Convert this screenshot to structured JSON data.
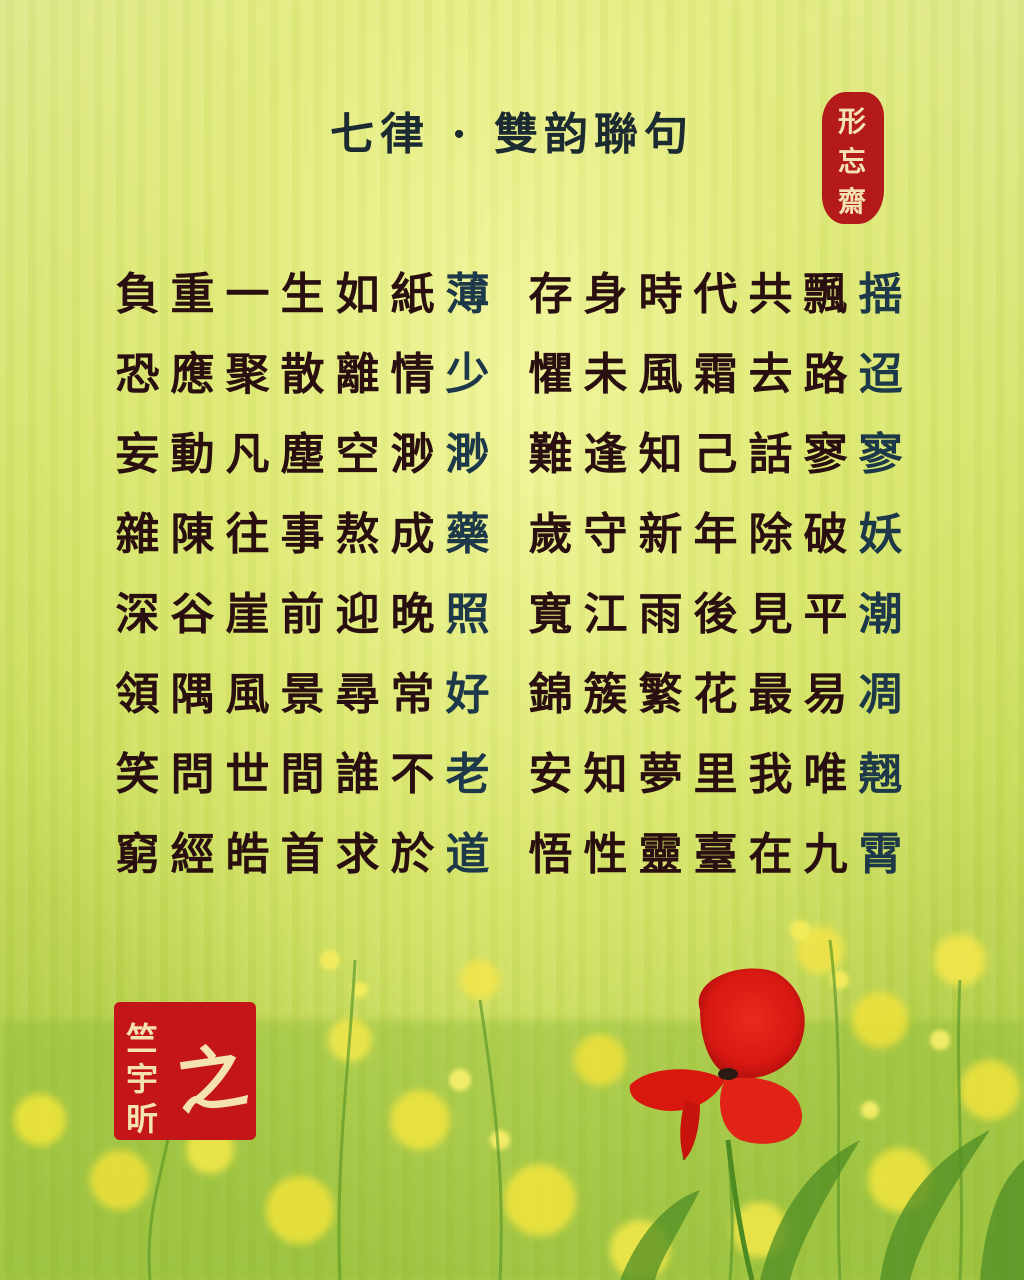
{
  "title": "七律 · 雙韵聯句",
  "poem": {
    "rows": [
      {
        "left": [
          "負",
          "重",
          "一",
          "生",
          "如",
          "紙",
          "薄"
        ],
        "right": [
          "存",
          "身",
          "時",
          "代",
          "共",
          "飄",
          "揺"
        ]
      },
      {
        "left": [
          "恐",
          "應",
          "聚",
          "散",
          "離",
          "情",
          "少"
        ],
        "right": [
          "懼",
          "未",
          "風",
          "霜",
          "去",
          "路",
          "迢"
        ]
      },
      {
        "left": [
          "妄",
          "動",
          "凡",
          "塵",
          "空",
          "渺",
          "渺"
        ],
        "right": [
          "難",
          "逢",
          "知",
          "己",
          "話",
          "寥",
          "寥"
        ]
      },
      {
        "left": [
          "雜",
          "陳",
          "往",
          "事",
          "熬",
          "成",
          "藥"
        ],
        "right": [
          "歲",
          "守",
          "新",
          "年",
          "除",
          "破",
          "妖"
        ]
      },
      {
        "left": [
          "深",
          "谷",
          "崖",
          "前",
          "迎",
          "晚",
          "照"
        ],
        "right": [
          "寬",
          "江",
          "雨",
          "後",
          "見",
          "平",
          "潮"
        ]
      },
      {
        "left": [
          "領",
          "隅",
          "風",
          "景",
          "尋",
          "常",
          "好"
        ],
        "right": [
          "錦",
          "簇",
          "繁",
          "花",
          "最",
          "易",
          "凋"
        ]
      },
      {
        "left": [
          "笑",
          "問",
          "世",
          "間",
          "誰",
          "不",
          "老"
        ],
        "right": [
          "安",
          "知",
          "夢",
          "里",
          "我",
          "唯",
          "翹"
        ]
      },
      {
        "left": [
          "窮",
          "經",
          "皓",
          "首",
          "求",
          "於",
          "道"
        ],
        "right": [
          "悟",
          "性",
          "靈",
          "臺",
          "在",
          "九",
          "霄"
        ]
      }
    ]
  },
  "seals": {
    "top": {
      "chars": [
        "形",
        "忘",
        "齋"
      ]
    },
    "bottom": {
      "chars": [
        "竺",
        "宇",
        "昕",
        "之"
      ]
    }
  },
  "colors": {
    "text": "#2a0f10",
    "rhyme_text": "#1d3848",
    "seal_red": "#c41518"
  }
}
